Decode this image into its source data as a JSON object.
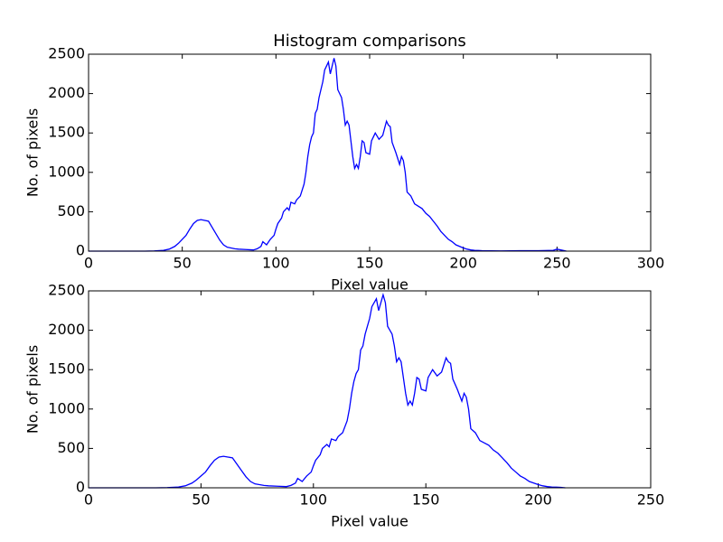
{
  "chart_data": [
    {
      "type": "line",
      "title": "Histogram comparisons",
      "xlabel": "Pixel value",
      "ylabel": "No. of pixels",
      "x": [
        0,
        10,
        20,
        30,
        35,
        40,
        43,
        46,
        48,
        50,
        52,
        54,
        56,
        58,
        60,
        62,
        64,
        66,
        68,
        70,
        72,
        74,
        76,
        78,
        80,
        84,
        88,
        90,
        92,
        93,
        95,
        97,
        99,
        100,
        101,
        103,
        104,
        106,
        107,
        108,
        110,
        111,
        113,
        115,
        116,
        117,
        118,
        119,
        120,
        121,
        122,
        123,
        124,
        125,
        126,
        127,
        128,
        129,
        130,
        131,
        132,
        133,
        134,
        135,
        136,
        137,
        138,
        139,
        140,
        141,
        142,
        143,
        144,
        145,
        146,
        147,
        148,
        150,
        151,
        152,
        153,
        155,
        157,
        159,
        160,
        161,
        162,
        164,
        166,
        167,
        168,
        169,
        170,
        172,
        174,
        176,
        178,
        180,
        182,
        184,
        186,
        188,
        190,
        192,
        194,
        196,
        198,
        200,
        202,
        204,
        206,
        208,
        210,
        220,
        230,
        240,
        248,
        250,
        252,
        255
      ],
      "series": [
        {
          "color": "#0000ff",
          "values": [
            0,
            0,
            0,
            0,
            2,
            10,
            25,
            60,
            100,
            150,
            200,
            280,
            350,
            390,
            400,
            390,
            380,
            300,
            220,
            140,
            80,
            50,
            40,
            30,
            25,
            20,
            15,
            30,
            60,
            120,
            80,
            150,
            200,
            280,
            350,
            420,
            500,
            550,
            520,
            620,
            600,
            650,
            700,
            850,
            1000,
            1200,
            1350,
            1450,
            1500,
            1750,
            1800,
            1950,
            2050,
            2150,
            2300,
            2350,
            2400,
            2250,
            2350,
            2450,
            2350,
            2050,
            2000,
            1950,
            1800,
            1600,
            1650,
            1600,
            1400,
            1200,
            1050,
            1100,
            1050,
            1200,
            1400,
            1380,
            1250,
            1230,
            1400,
            1450,
            1500,
            1420,
            1470,
            1650,
            1600,
            1580,
            1380,
            1250,
            1100,
            1200,
            1150,
            1000,
            750,
            700,
            600,
            570,
            540,
            480,
            440,
            380,
            320,
            250,
            200,
            150,
            120,
            80,
            60,
            40,
            25,
            15,
            10,
            8,
            5,
            3,
            5,
            5,
            10,
            25,
            15,
            0
          ]
        }
      ],
      "xlim": [
        0,
        300
      ],
      "xticks": [
        0,
        50,
        100,
        150,
        200,
        250,
        300
      ],
      "ylim": [
        0,
        2500
      ],
      "yticks": [
        0,
        500,
        1000,
        1500,
        2000,
        2500
      ]
    },
    {
      "type": "line",
      "xlabel": "Pixel value",
      "ylabel": "No. of pixels",
      "x": [
        0,
        10,
        20,
        30,
        35,
        40,
        43,
        46,
        48,
        50,
        52,
        54,
        56,
        58,
        60,
        62,
        64,
        66,
        68,
        70,
        72,
        74,
        76,
        78,
        80,
        84,
        88,
        90,
        92,
        93,
        95,
        97,
        99,
        100,
        101,
        103,
        104,
        106,
        107,
        108,
        110,
        111,
        113,
        115,
        116,
        117,
        118,
        119,
        120,
        121,
        122,
        123,
        124,
        125,
        126,
        127,
        128,
        129,
        130,
        131,
        132,
        133,
        134,
        135,
        136,
        137,
        138,
        139,
        140,
        141,
        142,
        143,
        144,
        145,
        146,
        147,
        148,
        150,
        151,
        152,
        153,
        155,
        157,
        159,
        160,
        161,
        162,
        164,
        166,
        167,
        168,
        169,
        170,
        172,
        174,
        176,
        178,
        180,
        182,
        184,
        186,
        188,
        190,
        192,
        194,
        196,
        198,
        200,
        202,
        204,
        206,
        208,
        210,
        212
      ],
      "series": [
        {
          "color": "#0000ff",
          "values": [
            0,
            0,
            0,
            0,
            2,
            10,
            25,
            60,
            100,
            150,
            200,
            280,
            350,
            390,
            400,
            390,
            380,
            300,
            220,
            140,
            80,
            50,
            40,
            30,
            25,
            20,
            15,
            30,
            60,
            120,
            80,
            150,
            200,
            280,
            350,
            420,
            500,
            550,
            520,
            620,
            600,
            650,
            700,
            850,
            1000,
            1200,
            1350,
            1450,
            1500,
            1750,
            1800,
            1950,
            2050,
            2150,
            2300,
            2350,
            2400,
            2250,
            2350,
            2450,
            2350,
            2050,
            2000,
            1950,
            1800,
            1600,
            1650,
            1600,
            1400,
            1200,
            1050,
            1100,
            1050,
            1200,
            1400,
            1380,
            1250,
            1230,
            1400,
            1450,
            1500,
            1420,
            1470,
            1650,
            1600,
            1580,
            1380,
            1250,
            1100,
            1200,
            1150,
            1000,
            750,
            700,
            600,
            570,
            540,
            480,
            440,
            380,
            320,
            250,
            200,
            150,
            120,
            80,
            60,
            40,
            25,
            15,
            10,
            8,
            5,
            0
          ]
        }
      ],
      "xlim": [
        0,
        250
      ],
      "xticks": [
        0,
        50,
        100,
        150,
        200,
        250
      ],
      "ylim": [
        0,
        2500
      ],
      "yticks": [
        0,
        500,
        1000,
        1500,
        2000,
        2500
      ]
    }
  ]
}
